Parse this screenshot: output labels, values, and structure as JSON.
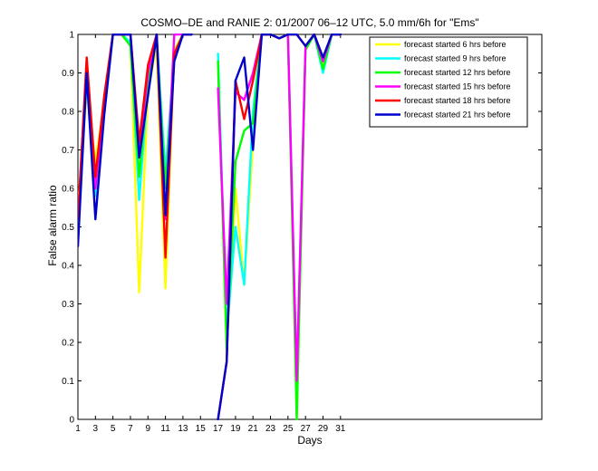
{
  "chart_data": {
    "type": "line",
    "title": "COSMO–DE and RANIE 2: 01/2007 06–12 UTC, 5.0 mm/6h for \"Ems\"",
    "xlabel": "Days",
    "ylabel": "False alarm ratio",
    "xlim": [
      1,
      54
    ],
    "ylim": [
      0,
      1
    ],
    "xticks": [
      1,
      3,
      5,
      7,
      9,
      11,
      13,
      15,
      17,
      19,
      21,
      23,
      25,
      27,
      29,
      31
    ],
    "yticks": [
      0,
      0.1,
      0.2,
      0.3,
      0.4,
      0.5,
      0.6,
      0.7,
      0.8,
      0.9,
      1
    ],
    "ytick_labels": [
      "0",
      "0.1",
      "0.2",
      "0.3",
      "0.4",
      "0.5",
      "0.6",
      "0.7",
      "0.8",
      "0.9",
      "1"
    ],
    "grid": false,
    "legend_position": "top-right",
    "series": [
      {
        "name": "forecast started 6 hrs before",
        "color": "#ffff00",
        "x": [
          1,
          2,
          3,
          4,
          5,
          6,
          7,
          8,
          9,
          10,
          11,
          12,
          13,
          14,
          17,
          18,
          19,
          20,
          21,
          22,
          23,
          24,
          25,
          26,
          27,
          28,
          29,
          30,
          31
        ],
        "y": [
          0.55,
          0.85,
          0.67,
          0.82,
          1.0,
          1.0,
          0.97,
          0.33,
          0.85,
          0.97,
          0.34,
          0.96,
          1.0,
          1.0,
          0.93,
          0.18,
          0.6,
          0.35,
          0.72,
          1.0,
          1.0,
          0.99,
          1.0,
          0.0,
          0.97,
          1.0,
          0.92,
          1.0,
          1.0
        ]
      },
      {
        "name": "forecast started 9 hrs before",
        "color": "#00ffff",
        "x": [
          1,
          2,
          3,
          4,
          5,
          6,
          7,
          8,
          9,
          10,
          11,
          12,
          13,
          14,
          17,
          18,
          19,
          20,
          21,
          22,
          23,
          24,
          25,
          26,
          27,
          28,
          29,
          30,
          31
        ],
        "y": [
          0.52,
          0.88,
          0.58,
          0.8,
          1.0,
          1.0,
          0.98,
          0.57,
          0.87,
          0.99,
          0.64,
          0.95,
          1.0,
          1.0,
          0.95,
          0.22,
          0.5,
          0.35,
          0.8,
          1.0,
          1.0,
          0.99,
          1.0,
          0.1,
          0.97,
          1.0,
          0.9,
          1.0,
          1.0
        ]
      },
      {
        "name": "forecast started 12 hrs before",
        "color": "#00ff00",
        "x": [
          1,
          2,
          3,
          4,
          5,
          6,
          7,
          8,
          9,
          10,
          11,
          12,
          13,
          14,
          17,
          18,
          19,
          20,
          21,
          22,
          23,
          24,
          25,
          26,
          27,
          28,
          29,
          30,
          31
        ],
        "y": [
          0.5,
          0.9,
          0.6,
          0.8,
          1.0,
          1.0,
          0.97,
          0.63,
          0.88,
          1.0,
          0.6,
          0.95,
          1.0,
          1.0,
          0.93,
          0.18,
          0.67,
          0.75,
          0.77,
          1.0,
          1.0,
          0.99,
          1.0,
          0.0,
          0.96,
          1.0,
          0.91,
          1.0,
          1.0
        ]
      },
      {
        "name": "forecast started 15 hrs before",
        "color": "#ff00ff",
        "x": [
          1,
          2,
          3,
          4,
          5,
          6,
          7,
          8,
          9,
          10,
          11,
          12,
          13,
          14,
          17,
          18,
          19,
          20,
          21,
          22,
          23,
          24,
          25,
          26,
          27,
          28,
          29,
          30,
          31
        ],
        "y": [
          0.52,
          0.92,
          0.6,
          0.82,
          1.0,
          1.0,
          1.0,
          0.7,
          0.9,
          1.0,
          0.52,
          1.0,
          1.0,
          1.0,
          0.86,
          0.3,
          0.85,
          0.83,
          0.9,
          1.0,
          1.0,
          0.99,
          1.0,
          0.1,
          0.97,
          1.0,
          0.93,
          1.0,
          1.0
        ]
      },
      {
        "name": "forecast started 18 hrs before",
        "color": "#ff0000",
        "x": [
          1,
          2,
          3,
          4,
          5,
          6,
          7,
          8,
          9,
          10,
          11,
          12,
          13,
          14,
          17,
          18,
          19,
          20,
          21,
          22,
          23,
          24,
          25,
          26,
          27,
          28,
          29,
          30,
          31
        ],
        "y": [
          0.52,
          0.94,
          0.63,
          0.84,
          1.0,
          1.0,
          1.0,
          0.72,
          0.92,
          1.0,
          0.42,
          0.95,
          1.0,
          1.0,
          0.0,
          0.15,
          0.88,
          0.78,
          0.88,
          1.0,
          1.0,
          0.99,
          1.0,
          1.0,
          0.97,
          1.0,
          0.94,
          1.0,
          1.0
        ]
      },
      {
        "name": "forecast started 21 hrs before",
        "color": "#0000cc",
        "x": [
          1,
          2,
          3,
          4,
          5,
          6,
          7,
          8,
          9,
          10,
          11,
          12,
          13,
          14,
          17,
          18,
          19,
          20,
          21,
          22,
          23,
          24,
          25,
          26,
          27,
          28,
          29,
          30,
          31
        ],
        "y": [
          0.45,
          0.9,
          0.52,
          0.79,
          1.0,
          1.0,
          1.0,
          0.68,
          0.84,
          1.0,
          0.53,
          0.93,
          1.0,
          1.0,
          0.0,
          0.15,
          0.88,
          0.94,
          0.7,
          1.0,
          1.0,
          0.99,
          1.0,
          1.0,
          0.97,
          1.0,
          0.94,
          1.0,
          1.0
        ]
      }
    ]
  }
}
